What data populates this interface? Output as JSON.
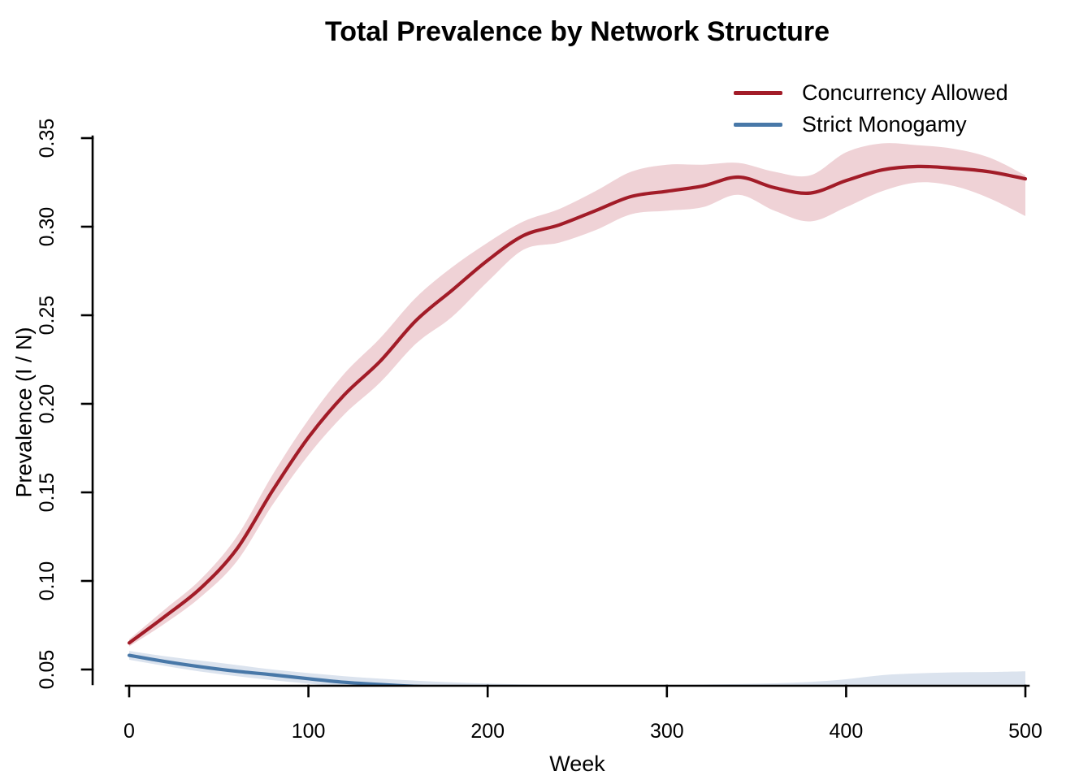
{
  "figure": {
    "title": "Total Prevalence by Network Structure",
    "x_axis": {
      "label": "Week",
      "tick_labels": [
        "0",
        "100",
        "200",
        "300",
        "400",
        "500"
      ]
    },
    "y_axis": {
      "label": "Prevalence (I / N)",
      "tick_labels": [
        "0.05",
        "0.10",
        "0.15",
        "0.20",
        "0.25",
        "0.30",
        "0.35"
      ]
    },
    "legend": {
      "items": [
        {
          "label": "Concurrency Allowed",
          "color": "#A21C28"
        },
        {
          "label": "Strict Monogamy",
          "color": "#4878A8"
        }
      ]
    }
  },
  "chart_data": {
    "type": "line",
    "title": "Total Prevalence by Network Structure",
    "xlabel": "Week",
    "ylabel": "Prevalence (I / N)",
    "xlim": [
      0,
      500
    ],
    "ylim": [
      0.05,
      0.35
    ],
    "x_ticks": [
      0,
      100,
      200,
      300,
      400,
      500
    ],
    "y_ticks": [
      0.05,
      0.1,
      0.15,
      0.2,
      0.25,
      0.3,
      0.35
    ],
    "grid": false,
    "legend_position": "topright",
    "x": [
      0,
      20,
      40,
      60,
      80,
      100,
      120,
      140,
      160,
      180,
      200,
      220,
      240,
      260,
      280,
      300,
      320,
      340,
      360,
      380,
      400,
      420,
      440,
      460,
      480,
      500
    ],
    "series": [
      {
        "name": "Concurrency Allowed",
        "color": "#A21C28",
        "band_color": "#EFD2D6",
        "values": [
          0.065,
          0.08,
          0.096,
          0.118,
          0.151,
          0.181,
          0.205,
          0.224,
          0.247,
          0.264,
          0.281,
          0.295,
          0.301,
          0.309,
          0.317,
          0.32,
          0.323,
          0.328,
          0.322,
          0.319,
          0.326,
          0.332,
          0.334,
          0.333,
          0.331,
          0.327
        ],
        "band_upper": [
          0.067,
          0.084,
          0.101,
          0.125,
          0.16,
          0.191,
          0.217,
          0.237,
          0.26,
          0.277,
          0.291,
          0.303,
          0.31,
          0.32,
          0.331,
          0.335,
          0.335,
          0.336,
          0.331,
          0.329,
          0.342,
          0.347,
          0.346,
          0.344,
          0.339,
          0.329
        ],
        "band_lower": [
          0.063,
          0.076,
          0.091,
          0.111,
          0.143,
          0.171,
          0.194,
          0.212,
          0.234,
          0.249,
          0.269,
          0.287,
          0.291,
          0.298,
          0.307,
          0.309,
          0.311,
          0.318,
          0.309,
          0.303,
          0.311,
          0.32,
          0.325,
          0.323,
          0.316,
          0.306
        ]
      },
      {
        "name": "Strict Monogamy",
        "color": "#4878A8",
        "band_color": "#DBE3EE",
        "values": [
          0.058,
          0.0545,
          0.0515,
          0.049,
          0.047,
          0.0448,
          0.0428,
          0.0415,
          0.0405,
          0.04,
          0.0398,
          0.0397,
          0.0396,
          0.0396,
          0.0396,
          0.0396,
          0.0396,
          0.0396,
          0.0397,
          0.0398,
          0.0398,
          0.0398,
          0.0398,
          0.0398,
          0.0398,
          0.0398
        ],
        "band_upper": [
          0.0605,
          0.0575,
          0.055,
          0.0525,
          0.05,
          0.048,
          0.0462,
          0.0448,
          0.0437,
          0.0428,
          0.0421,
          0.0416,
          0.0413,
          0.0412,
          0.0412,
          0.0413,
          0.0415,
          0.0418,
          0.0422,
          0.043,
          0.0445,
          0.0468,
          0.0478,
          0.0484,
          0.0486,
          0.049
        ],
        "band_lower": [
          0.0555,
          0.052,
          0.0488,
          0.0462,
          0.044,
          0.042,
          0.0402,
          0.039,
          0.0382,
          0.0378,
          0.0375,
          0.0375,
          0.0375,
          0.0375,
          0.0375,
          0.0375,
          0.0375,
          0.0375,
          0.0375,
          0.0375,
          0.0375,
          0.0375,
          0.0375,
          0.0375,
          0.0375,
          0.0375
        ]
      }
    ]
  }
}
